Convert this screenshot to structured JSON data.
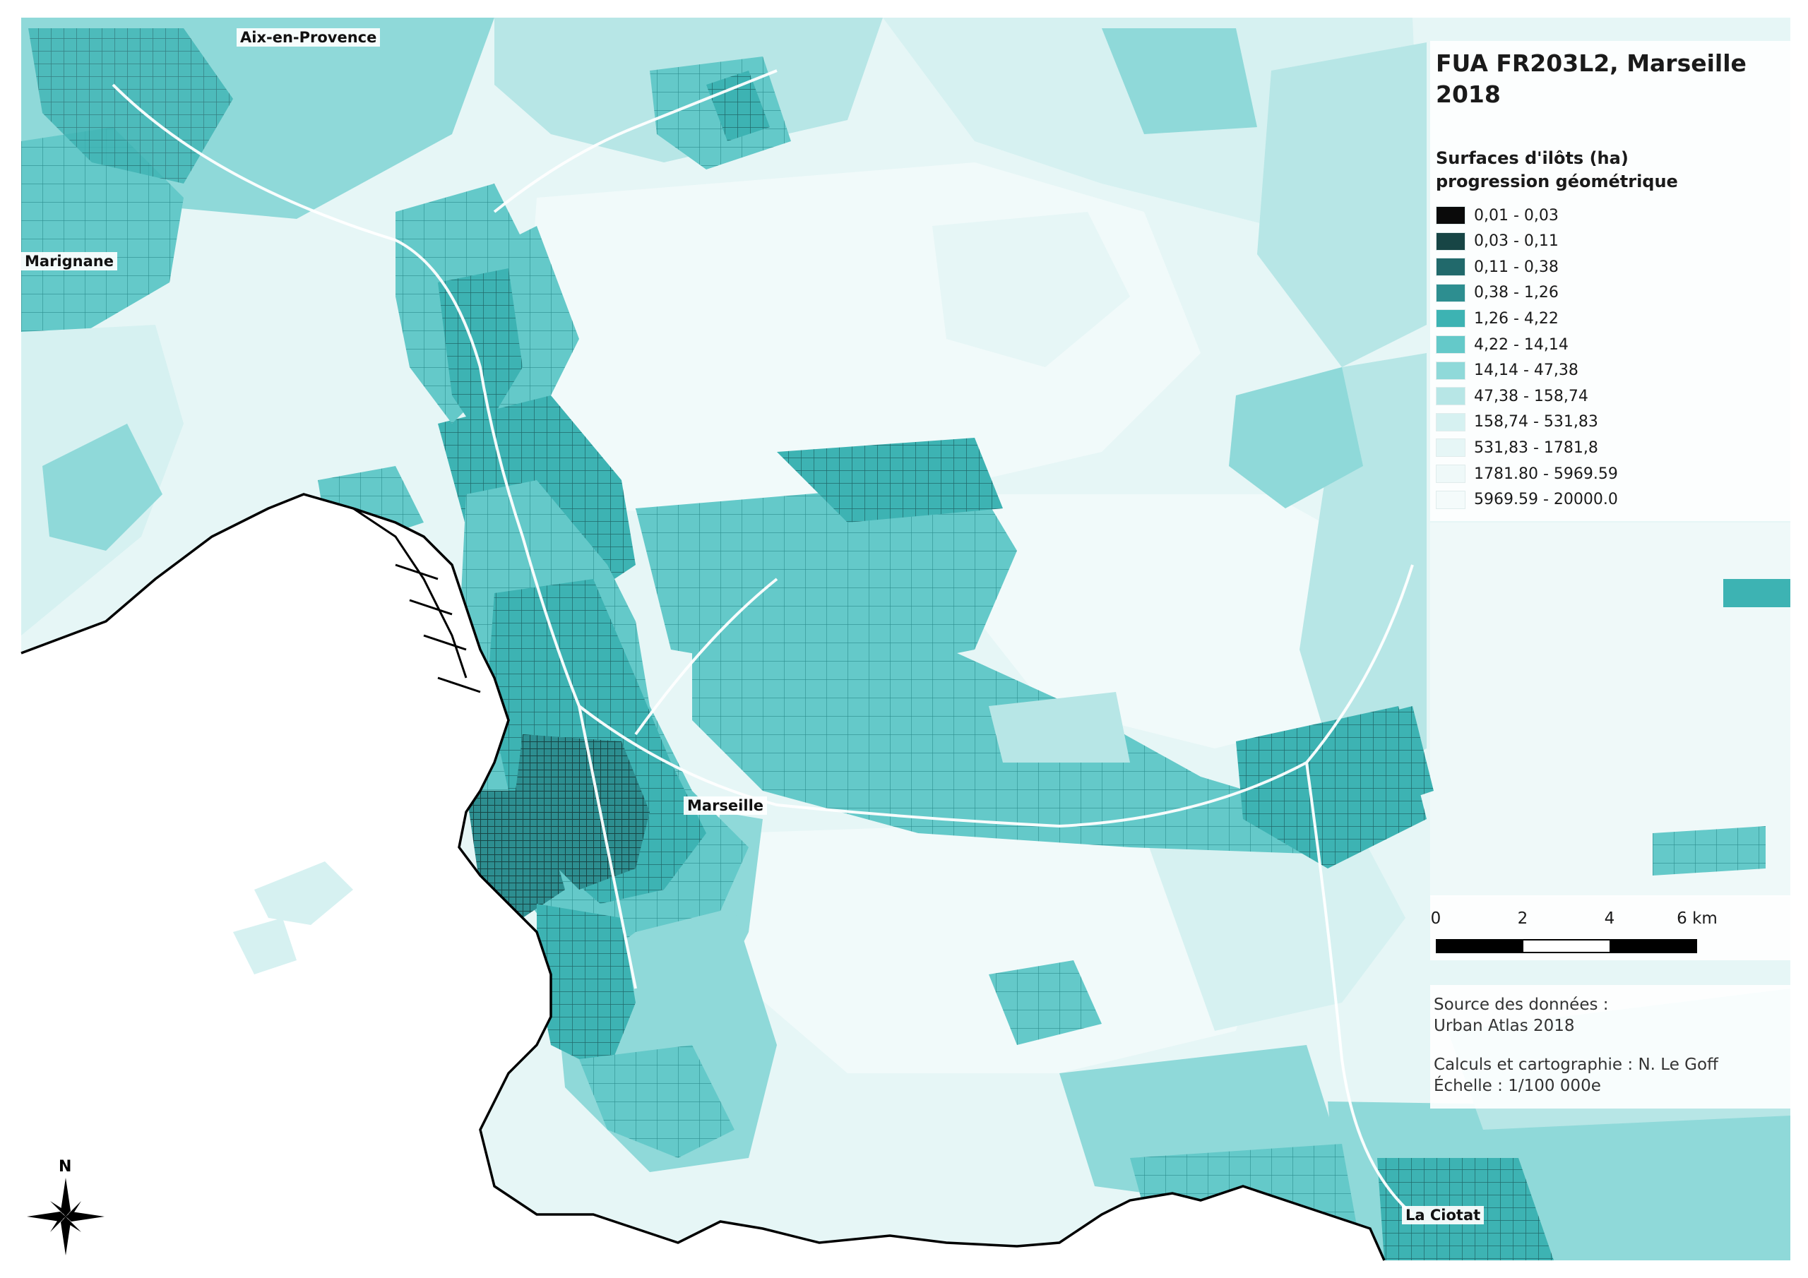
{
  "map": {
    "title": "FUA FR203L2, Marseille",
    "year": "2018",
    "legend_title_line1": "Surfaces d'ilôts (ha)",
    "legend_title_line2": "progression géométrique",
    "classes": [
      {
        "label": "0,01 - 0,03",
        "color": "#0a0a0a"
      },
      {
        "label": "0,03 - 0,11",
        "color": "#174545"
      },
      {
        "label": "0,11 - 0,38",
        "color": "#21696b"
      },
      {
        "label": "0,38 - 1,26",
        "color": "#2d8e90"
      },
      {
        "label": "1,26 - 4,22",
        "color": "#3db3b3"
      },
      {
        "label": "4,22 - 14,14",
        "color": "#64c9c9"
      },
      {
        "label": "14,14 - 47,38",
        "color": "#8fd9d9"
      },
      {
        "label": "47,38 - 158,74",
        "color": "#b7e6e6"
      },
      {
        "label": "158,74 - 531,83",
        "color": "#d6f1f1"
      },
      {
        "label": "531,83 - 1781,8",
        "color": "#e6f6f6"
      },
      {
        "label": "1781.80 - 5969.59",
        "color": "#eff9f9"
      },
      {
        "label": "5969.59 - 20000.0",
        "color": "#f4fbfb"
      }
    ],
    "scale": {
      "labels": [
        "0",
        "2",
        "4",
        "6 km"
      ]
    },
    "credits": {
      "source_label": "Source des données :",
      "source": "Urban Atlas 2018",
      "author": "Calculs et cartographie : N. Le Goff",
      "scale_text": "Échelle : 1/100 000e"
    },
    "places": [
      "Aix-en-Provence",
      "Marignane",
      "Marseille",
      "La Ciotat"
    ],
    "north_label": "N"
  }
}
